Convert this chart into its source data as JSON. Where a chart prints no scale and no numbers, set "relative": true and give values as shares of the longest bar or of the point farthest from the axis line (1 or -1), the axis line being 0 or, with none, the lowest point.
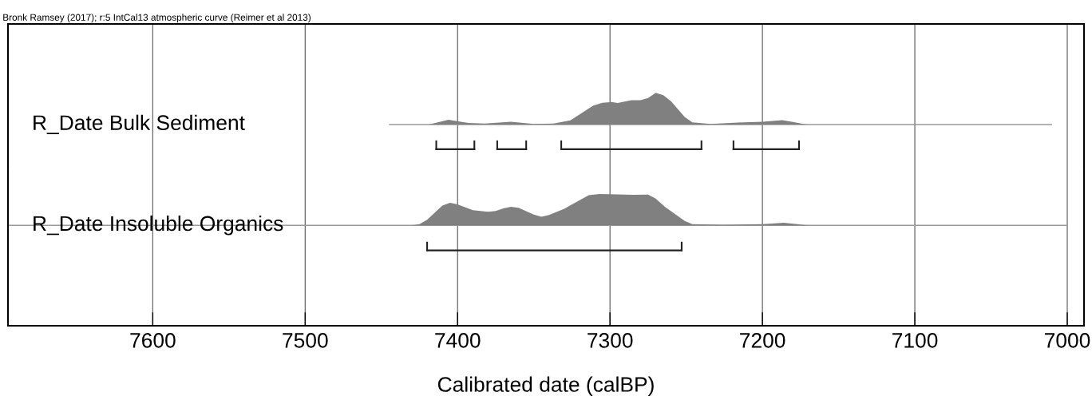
{
  "chart_data": [
    {
      "type": "area",
      "title": "Bronk Ramsey (2017); r:5 IntCal13 atmospheric curve (Reimer et al 2013)",
      "relative": true,
      "x": [
        7445,
        7419,
        7406,
        7393,
        7382,
        7365,
        7350,
        7337,
        7326,
        7311,
        7305,
        7299,
        7295,
        7286,
        7280,
        7275,
        7270,
        7265,
        7260,
        7251,
        7246,
        7234,
        7216,
        7200,
        7187,
        7180,
        7171,
        7010
      ],
      "series": [
        {
          "name": "R_Date Bulk Sediment",
          "color": "#808080",
          "values": [
            0,
            0,
            0.15,
            0.05,
            0.03,
            0.09,
            0.02,
            0.03,
            0.13,
            0.6,
            0.69,
            0.71,
            0.68,
            0.77,
            0.77,
            0.84,
            1.0,
            0.93,
            0.74,
            0.24,
            0.07,
            0.02,
            0.06,
            0.09,
            0.14,
            0.08,
            0,
            0
          ]
        },
        {
          "type": "line",
          "color": "#222222",
          "x": [
            7414,
            7389
          ],
          "values": [
            -0.78,
            -0.78
          ]
        },
        {
          "type": "line",
          "color": "#222222",
          "x": [
            7374,
            7355
          ],
          "values": [
            -0.78,
            -0.78
          ]
        },
        {
          "type": "line",
          "color": "#222222",
          "x": [
            7332,
            7240
          ],
          "values": [
            -0.78,
            -0.78
          ]
        },
        {
          "type": "line",
          "color": "#222222",
          "x": [
            7219,
            7176
          ],
          "values": [
            -0.78,
            -0.78
          ]
        }
      ],
      "xlim": [
        7695,
        6989
      ],
      "xticks": [
        7600,
        7500,
        7400,
        7300,
        7200,
        7100,
        7000
      ],
      "tick_labels": false,
      "grid": "x"
    },
    {
      "type": "area",
      "xlabel": "Calibrated date (calBP)",
      "relative": true,
      "x": [
        7695,
        7430,
        7425,
        7420,
        7410,
        7405,
        7400,
        7390,
        7380,
        7375,
        7370,
        7365,
        7360,
        7350,
        7345,
        7340,
        7330,
        7323,
        7314,
        7307,
        7300,
        7285,
        7275,
        7270,
        7264,
        7251,
        7246,
        7226,
        7200,
        7186,
        7177,
        7170,
        7000
      ],
      "series": [
        {
          "name": "R_Date Insoluble Organics",
          "color": "#808080",
          "values": [
            0,
            0,
            0.04,
            0.18,
            0.63,
            0.72,
            0.67,
            0.48,
            0.43,
            0.46,
            0.54,
            0.59,
            0.56,
            0.34,
            0.27,
            0.33,
            0.53,
            0.72,
            0.96,
            1.0,
            0.99,
            0.97,
            0.98,
            0.85,
            0.59,
            0.14,
            0.04,
            0.02,
            0.04,
            0.08,
            0.04,
            0,
            0
          ]
        },
        {
          "type": "line",
          "color": "#222222",
          "x": [
            7420,
            7253
          ],
          "values": [
            -0.8,
            -0.8
          ]
        }
      ],
      "xlim": [
        7695,
        6989
      ],
      "xticks": [
        7600,
        7500,
        7400,
        7300,
        7200,
        7100,
        7000
      ],
      "grid": "x"
    }
  ]
}
